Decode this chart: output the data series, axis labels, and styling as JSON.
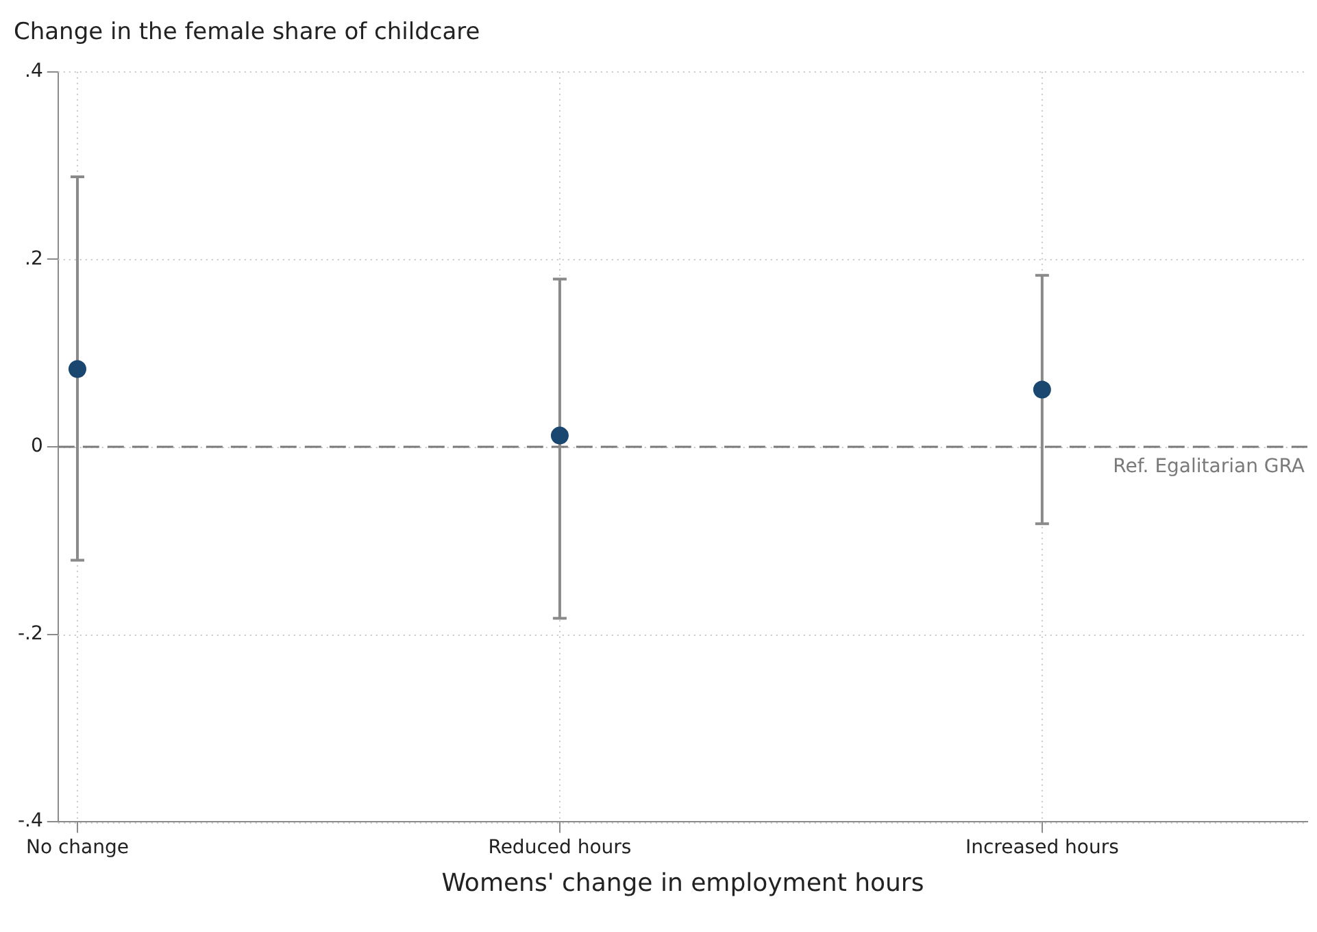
{
  "chart_data": {
    "type": "scatter",
    "title": "Change in the female share of childcare",
    "xlabel": "Womens' change in employment hours",
    "categories": [
      "No change",
      "Reduced hours",
      "Increased hours"
    ],
    "series": [
      {
        "color": "#1a476f",
        "values": [
          0.083,
          0.012,
          0.061
        ],
        "errors": [
          [
            -0.121,
            0.288
          ],
          [
            -0.183,
            0.179
          ],
          [
            -0.082,
            0.183
          ]
        ]
      }
    ],
    "ylim": [
      -0.4,
      0.4
    ],
    "yticks": [
      {
        "value": -0.4,
        "label": "-.4"
      },
      {
        "value": -0.2,
        "label": "-.2"
      },
      0,
      {
        "value": 0.2,
        "label": ".2"
      },
      {
        "value": 0.4,
        "label": ".4"
      }
    ],
    "ref_lines": [
      {
        "axis": "y",
        "value": 0,
        "label": "Ref. Egalitarian GRA",
        "color": "#7a7a7a",
        "line_style": "dashed"
      }
    ],
    "grid": true,
    "legend": false,
    "marker": "circle"
  }
}
